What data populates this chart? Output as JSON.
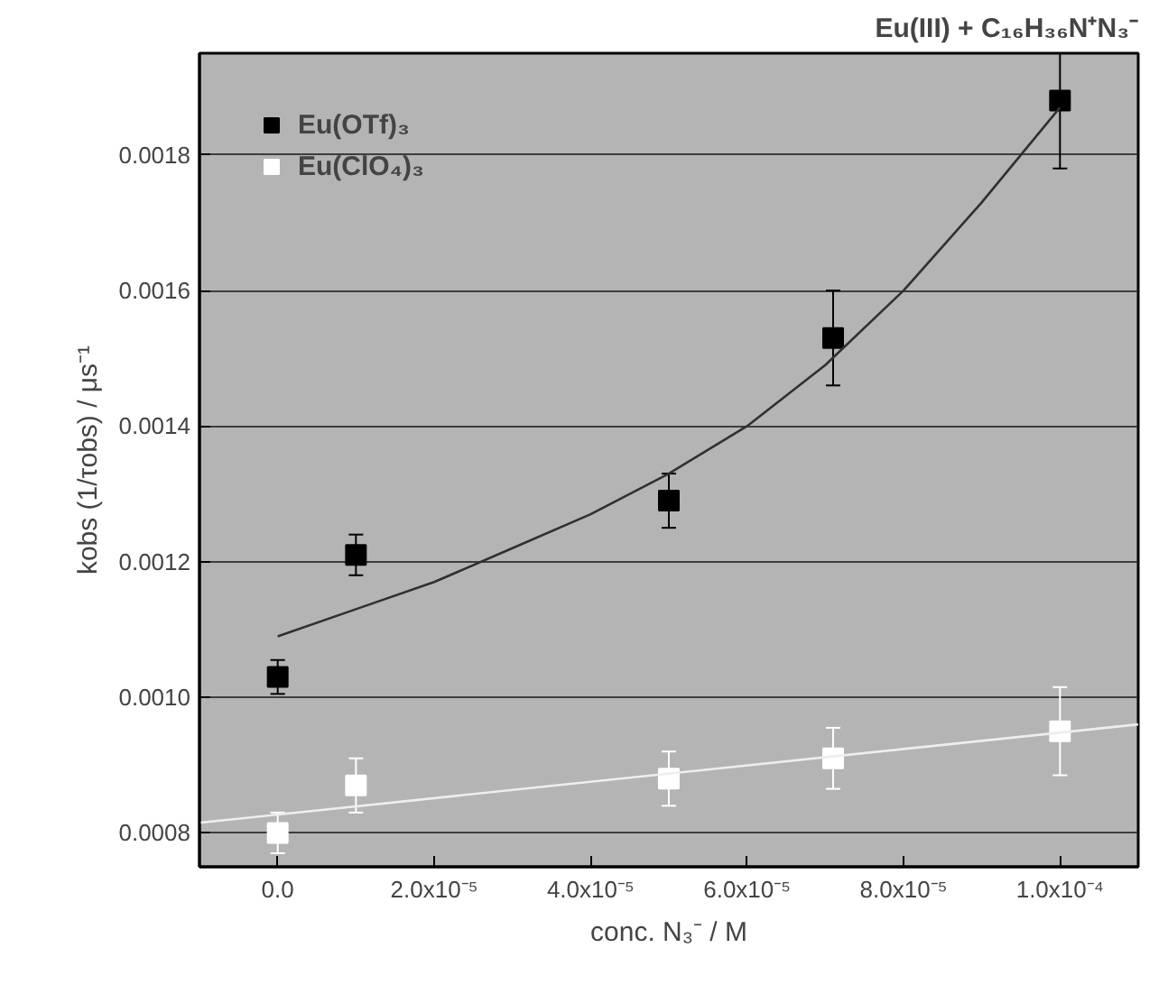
{
  "chart_data": {
    "type": "scatter",
    "title": "Eu(III) + C₁₆H₃₆N⁺N₃⁻",
    "xlabel": "conc. N₃⁻ / M",
    "ylabel": "kobs (1/τobs) / μs⁻¹",
    "xlim": [
      -1e-05,
      0.00011
    ],
    "xticks": [
      {
        "value": 0,
        "label": "0.0"
      },
      {
        "value": 2e-05,
        "label": "2.0x10⁻⁵"
      },
      {
        "value": 4e-05,
        "label": "4.0x10⁻⁵"
      },
      {
        "value": 6e-05,
        "label": "6.0x10⁻⁵"
      },
      {
        "value": 8e-05,
        "label": "8.0x10⁻⁵"
      },
      {
        "value": 0.0001,
        "label": "1.0x10⁻⁴"
      }
    ],
    "ylim": [
      0.00075,
      0.00195
    ],
    "yticks": [
      {
        "value": 0.0008,
        "label": "0.0008"
      },
      {
        "value": 0.001,
        "label": "0.0010"
      },
      {
        "value": 0.0012,
        "label": "0.0012"
      },
      {
        "value": 0.0014,
        "label": "0.0014"
      },
      {
        "value": 0.0016,
        "label": "0.0016"
      },
      {
        "value": 0.0018,
        "label": "0.0018"
      }
    ],
    "grid": "y",
    "legend": "top left",
    "series": [
      {
        "name": "Eu(OTf)₃",
        "marker": "square",
        "color": "#000000",
        "x": [
          0,
          1e-05,
          5e-05,
          7.1e-05,
          0.0001
        ],
        "values": [
          0.00103,
          0.00121,
          0.00129,
          0.00153,
          0.00188
        ],
        "errors": [
          2.5e-05,
          3e-05,
          4e-05,
          7e-05,
          [
            0.00178,
            0.00195
          ]
        ]
      },
      {
        "name": "Eu(ClO₄)₃",
        "marker": "square",
        "color": "#ffffff",
        "x": [
          0,
          1e-05,
          5e-05,
          7.1e-05,
          0.0001
        ],
        "values": [
          0.0008,
          0.00087,
          0.00088,
          0.00091,
          0.00095
        ],
        "errors": [
          3e-05,
          4e-05,
          4e-05,
          4.5e-05,
          6.5e-05
        ]
      },
      {
        "type": "line",
        "marker": "none",
        "color": "#303030",
        "x": [
          0,
          1e-05,
          2e-05,
          3e-05,
          4e-05,
          5e-05,
          6e-05,
          7e-05,
          8e-05,
          9e-05,
          0.0001
        ],
        "values": [
          0.00109,
          0.00113,
          0.00117,
          0.00122,
          0.00127,
          0.00133,
          0.0014,
          0.00149,
          0.0016,
          0.00173,
          0.00187
        ]
      },
      {
        "type": "line",
        "marker": "none",
        "color": "#eeeeee",
        "x": [
          -1e-05,
          0.00011
        ],
        "values": [
          0.000815,
          0.00096
        ]
      }
    ]
  }
}
